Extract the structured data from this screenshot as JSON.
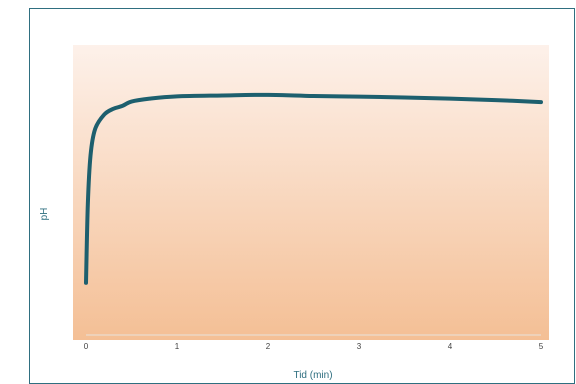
{
  "chart_data": {
    "type": "line",
    "title": "",
    "xlabel": "Tid (min)",
    "ylabel": "pH",
    "xlim": [
      0,
      5
    ],
    "ylim": [
      0,
      1
    ],
    "x_ticks": [
      0,
      1,
      2,
      3,
      4,
      5
    ],
    "y_ticks": [],
    "grid": false,
    "legend": "none",
    "colors": {
      "line": "#1d5f6e",
      "plot_bg_top": "#fdf1ea",
      "plot_bg_bottom": "#f4bf95",
      "frame": "#2f6f80"
    },
    "series": [
      {
        "values": [
          {
            "x": 0.0,
            "y": 0.18
          },
          {
            "x": 0.02,
            "y": 0.45
          },
          {
            "x": 0.05,
            "y": 0.62
          },
          {
            "x": 0.1,
            "y": 0.71
          },
          {
            "x": 0.2,
            "y": 0.76
          },
          {
            "x": 0.3,
            "y": 0.78
          },
          {
            "x": 0.4,
            "y": 0.79
          },
          {
            "x": 0.5,
            "y": 0.805
          },
          {
            "x": 0.7,
            "y": 0.815
          },
          {
            "x": 1.0,
            "y": 0.823
          },
          {
            "x": 1.5,
            "y": 0.826
          },
          {
            "x": 2.0,
            "y": 0.828
          },
          {
            "x": 2.5,
            "y": 0.824
          },
          {
            "x": 3.0,
            "y": 0.822
          },
          {
            "x": 3.5,
            "y": 0.819
          },
          {
            "x": 4.0,
            "y": 0.815
          },
          {
            "x": 4.5,
            "y": 0.81
          },
          {
            "x": 5.0,
            "y": 0.803
          }
        ]
      }
    ]
  }
}
